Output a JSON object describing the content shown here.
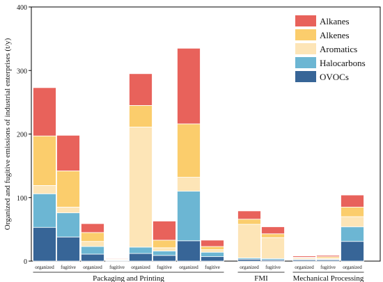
{
  "chart_data": {
    "type": "bar",
    "stacked": true,
    "ylabel": "Organized and fugitive emissions of industrial enterprises (t/y)",
    "ylim": [
      0,
      400
    ],
    "yticks": [
      0,
      100,
      200,
      300,
      400
    ],
    "grid": false,
    "legend_position": "top-right",
    "categories": [
      "organized",
      "fugitive",
      "organized",
      "fugitive",
      "organized",
      "fugitive",
      "organized",
      "fugitive",
      "organized",
      "fugitive",
      "organized",
      "fugitive",
      "organized"
    ],
    "groups": [
      {
        "label": "Packaging and Printing",
        "start": 0,
        "end": 7
      },
      {
        "label": "FMI",
        "start": 8,
        "end": 9
      },
      {
        "label": "Mechanical Processing",
        "start": 10,
        "end": 12
      }
    ],
    "series": [
      {
        "name": "OVOCs",
        "color": "#376597",
        "values": [
          53,
          38,
          11,
          1,
          12,
          9,
          32,
          7,
          3,
          2,
          2,
          2,
          31
        ]
      },
      {
        "name": "Halocarbons",
        "color": "#6cb6d3",
        "values": [
          53,
          38,
          12,
          0.5,
          10,
          7,
          78,
          7,
          2,
          2,
          1,
          1,
          23
        ]
      },
      {
        "name": "Aromatics",
        "color": "#fde5b7",
        "values": [
          13,
          9,
          8,
          0.5,
          189,
          5,
          22,
          4,
          53,
          33,
          2,
          2,
          16
        ]
      },
      {
        "name": "Alkenes",
        "color": "#fbcd6c",
        "values": [
          78,
          57,
          14,
          1,
          34,
          12,
          84,
          5,
          8,
          6,
          1,
          2,
          15
        ]
      },
      {
        "name": "Alkanes",
        "color": "#e8625b",
        "values": [
          76,
          56,
          14,
          1,
          50,
          30,
          119,
          10,
          13,
          11,
          2,
          2,
          19
        ]
      }
    ]
  }
}
